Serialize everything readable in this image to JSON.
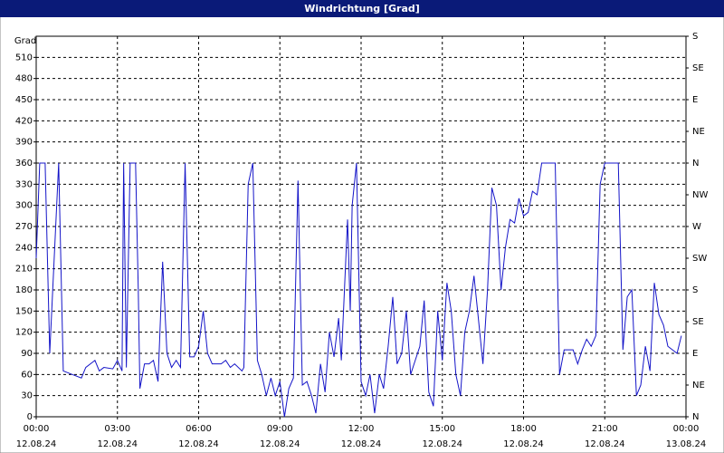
{
  "chart_data": {
    "type": "line",
    "title": "Windrichtung [Grad]",
    "ylabel": "Grad",
    "color": "#1414c8",
    "grid": true,
    "x": [
      0,
      0.13,
      0.33,
      0.5,
      0.83,
      1,
      1.33,
      1.67,
      1.83,
      2.17,
      2.33,
      2.5,
      2.83,
      3,
      3.17,
      3.23,
      3.33,
      3.47,
      3.67,
      3.77,
      3.83,
      4,
      4.17,
      4.33,
      4.5,
      4.67,
      4.83,
      5,
      5.17,
      5.33,
      5.5,
      5.67,
      5.83,
      6,
      6.17,
      6.33,
      6.5,
      6.83,
      7,
      7.17,
      7.33,
      7.6,
      7.67,
      7.83,
      8,
      8.17,
      8.33,
      8.5,
      8.67,
      8.83,
      9,
      9.17,
      9.33,
      9.5,
      9.67,
      9.83,
      10,
      10.17,
      10.33,
      10.5,
      10.67,
      10.83,
      11,
      11.17,
      11.27,
      11.5,
      11.6,
      11.67,
      11.83,
      12,
      12.17,
      12.33,
      12.5,
      12.67,
      12.83,
      13,
      13.17,
      13.33,
      13.5,
      13.67,
      13.83,
      14,
      14.17,
      14.33,
      14.5,
      14.67,
      14.83,
      15,
      15.17,
      15.33,
      15.5,
      15.67,
      15.83,
      16,
      16.17,
      16.33,
      16.5,
      16.67,
      16.83,
      17,
      17.17,
      17.33,
      17.5,
      17.67,
      17.83,
      18,
      18.17,
      18.33,
      18.5,
      18.67,
      19.17,
      19.33,
      19.5,
      19.83,
      20,
      20.17,
      20.33,
      20.5,
      20.67,
      20.83,
      21,
      21.5,
      21.67,
      21.83,
      22,
      22.17,
      22.33,
      22.5,
      22.67,
      22.83,
      23,
      23.17,
      23.33,
      23.5,
      23.67,
      23.83
    ],
    "values": [
      225,
      360,
      360,
      90,
      360,
      65,
      60,
      55,
      70,
      80,
      65,
      70,
      68,
      80,
      65,
      360,
      70,
      360,
      360,
      180,
      40,
      75,
      75,
      80,
      50,
      220,
      90,
      70,
      80,
      70,
      360,
      85,
      85,
      100,
      150,
      90,
      75,
      75,
      80,
      70,
      75,
      65,
      70,
      330,
      360,
      80,
      60,
      30,
      55,
      30,
      50,
      0,
      40,
      55,
      335,
      45,
      50,
      30,
      5,
      75,
      35,
      120,
      85,
      140,
      80,
      280,
      150,
      300,
      360,
      50,
      30,
      60,
      5,
      60,
      40,
      100,
      170,
      75,
      90,
      150,
      60,
      80,
      100,
      165,
      35,
      15,
      150,
      80,
      190,
      150,
      60,
      30,
      120,
      150,
      200,
      140,
      75,
      180,
      325,
      300,
      180,
      240,
      280,
      275,
      310,
      285,
      290,
      320,
      315,
      360,
      360,
      60,
      95,
      95,
      75,
      95,
      110,
      100,
      115,
      330,
      360,
      360,
      95,
      170,
      180,
      30,
      45,
      100,
      65,
      190,
      145,
      130,
      100,
      95,
      90,
      115
    ],
    "xlim": [
      0,
      24
    ],
    "xticks": [
      {
        "value": 0,
        "label": "00:00",
        "sublabel": "12.08.24"
      },
      {
        "value": 3,
        "label": "03:00",
        "sublabel": "12.08.24"
      },
      {
        "value": 6,
        "label": "06:00",
        "sublabel": "12.08.24"
      },
      {
        "value": 9,
        "label": "09:00",
        "sublabel": "12.08.24"
      },
      {
        "value": 12,
        "label": "12:00",
        "sublabel": "12.08.24"
      },
      {
        "value": 15,
        "label": "15:00",
        "sublabel": "12.08.24"
      },
      {
        "value": 18,
        "label": "18:00",
        "sublabel": "12.08.24"
      },
      {
        "value": 21,
        "label": "21:00",
        "sublabel": "12.08.24"
      },
      {
        "value": 24,
        "label": "00:00",
        "sublabel": "13.08.24"
      }
    ],
    "ylim": [
      0,
      540
    ],
    "yticks": [
      0,
      30,
      60,
      90,
      120,
      150,
      180,
      210,
      240,
      270,
      300,
      330,
      360,
      390,
      420,
      450,
      480,
      510
    ],
    "y2lim": [
      0,
      540
    ],
    "y2ticks": [
      {
        "value": 0,
        "label": "N"
      },
      {
        "value": 45,
        "label": "NE"
      },
      {
        "value": 90,
        "label": "E"
      },
      {
        "value": 135,
        "label": "SE"
      },
      {
        "value": 180,
        "label": "S"
      },
      {
        "value": 225,
        "label": "SW"
      },
      {
        "value": 270,
        "label": "W"
      },
      {
        "value": 315,
        "label": "NW"
      },
      {
        "value": 360,
        "label": "N"
      },
      {
        "value": 405,
        "label": "NE"
      },
      {
        "value": 450,
        "label": "E"
      },
      {
        "value": 495,
        "label": "SE"
      },
      {
        "value": 540,
        "label": "S"
      }
    ]
  }
}
